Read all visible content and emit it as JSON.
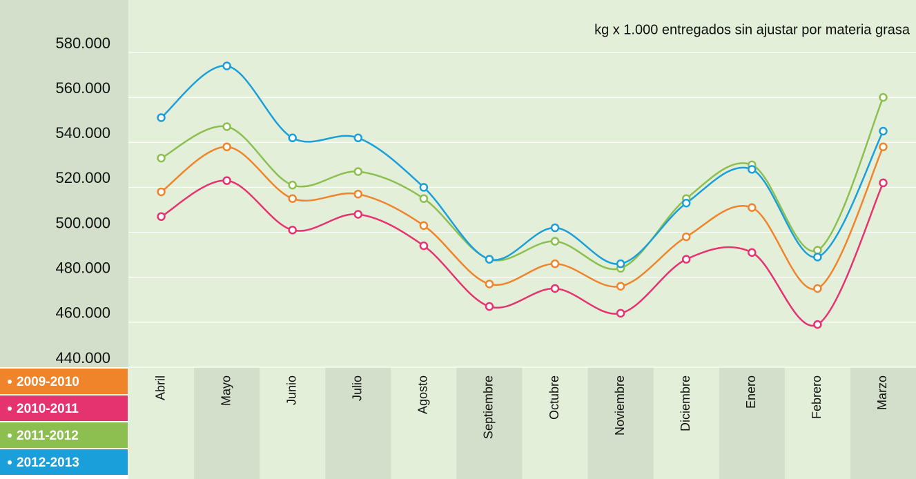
{
  "chart_data": {
    "type": "line",
    "title": "kg x 1.000 entregados sin ajustar por materia grasa",
    "categories": [
      "Abril",
      "Mayo",
      "Junio",
      "Julio",
      "Agosto",
      "Septiembre",
      "Octubre",
      "Noviembre",
      "Diciembre",
      "Enero",
      "Febrero",
      "Marzo"
    ],
    "series": [
      {
        "name": "2009-2010",
        "color": "#f0842a",
        "values": [
          518000,
          538000,
          515000,
          517000,
          503000,
          477000,
          486000,
          476000,
          498000,
          511000,
          475000,
          538000
        ]
      },
      {
        "name": "2010-2011",
        "color": "#e5336f",
        "values": [
          507000,
          523000,
          501000,
          508000,
          494000,
          467000,
          475000,
          464000,
          488000,
          491000,
          459000,
          522000
        ]
      },
      {
        "name": "2011-2012",
        "color": "#8cbf50",
        "values": [
          533000,
          547000,
          521000,
          527000,
          515000,
          488000,
          496000,
          484000,
          515000,
          530000,
          492000,
          560000
        ]
      },
      {
        "name": "2012-2013",
        "color": "#1a9fdb",
        "values": [
          551000,
          574000,
          542000,
          542000,
          520000,
          488000,
          502000,
          486000,
          513000,
          528000,
          489000,
          545000
        ]
      }
    ],
    "ylim": [
      440000,
      580000
    ],
    "yticks": [
      {
        "value": 440000,
        "label": "440.000"
      },
      {
        "value": 460000,
        "label": "460.000"
      },
      {
        "value": 480000,
        "label": "480.000"
      },
      {
        "value": 500000,
        "label": "500.000"
      },
      {
        "value": 520000,
        "label": "520.000"
      },
      {
        "value": 540000,
        "label": "540.000"
      },
      {
        "value": 560000,
        "label": "560.000"
      },
      {
        "value": 580000,
        "label": "580.000"
      }
    ],
    "grid": true
  }
}
